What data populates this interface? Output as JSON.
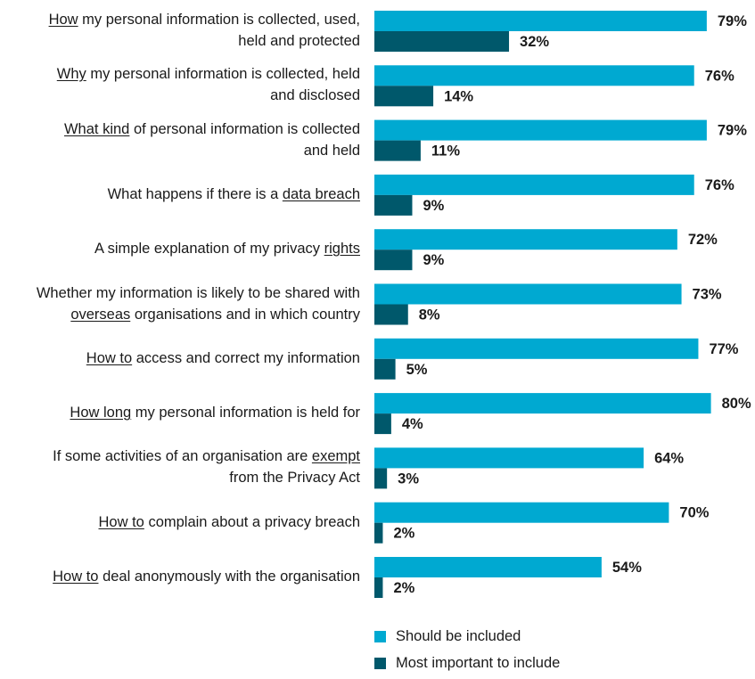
{
  "chart_data": {
    "type": "bar",
    "orientation": "horizontal",
    "categories": [
      {
        "segments": [
          {
            "text": "How",
            "underline": true
          },
          {
            "text": " my personal information is collected, used,",
            "underline": false
          }
        ],
        "line2": [
          {
            "text": "held and protected",
            "underline": false
          }
        ]
      },
      {
        "segments": [
          {
            "text": "Why",
            "underline": true
          },
          {
            "text": " my personal information is collected, held",
            "underline": false
          }
        ],
        "line2": [
          {
            "text": "and disclosed",
            "underline": false
          }
        ]
      },
      {
        "segments": [
          {
            "text": "What kind",
            "underline": true
          },
          {
            "text": " of personal information is collected",
            "underline": false
          }
        ],
        "line2": [
          {
            "text": "and held",
            "underline": false
          }
        ]
      },
      {
        "segments": [
          {
            "text": "What happens if there is a ",
            "underline": false
          },
          {
            "text": "data breach",
            "underline": true
          }
        ],
        "line2": []
      },
      {
        "segments": [
          {
            "text": "A simple explanation of my privacy ",
            "underline": false
          },
          {
            "text": "rights",
            "underline": true
          }
        ],
        "line2": []
      },
      {
        "segments": [
          {
            "text": "Whether my information is likely to be shared with",
            "underline": false
          }
        ],
        "line2": [
          {
            "text": "overseas",
            "underline": true
          },
          {
            "text": " organisations and in which country",
            "underline": false
          }
        ]
      },
      {
        "segments": [
          {
            "text": "How to",
            "underline": true
          },
          {
            "text": " access and correct my information",
            "underline": false
          }
        ],
        "line2": []
      },
      {
        "segments": [
          {
            "text": "How long",
            "underline": true
          },
          {
            "text": " my personal information is held for",
            "underline": false
          }
        ],
        "line2": []
      },
      {
        "segments": [
          {
            "text": "If some activities of an organisation are ",
            "underline": false
          },
          {
            "text": "exempt",
            "underline": true
          }
        ],
        "line2": [
          {
            "text": "from the Privacy Act",
            "underline": false
          }
        ]
      },
      {
        "segments": [
          {
            "text": "How to",
            "underline": true
          },
          {
            "text": " complain about a privacy breach",
            "underline": false
          }
        ],
        "line2": []
      },
      {
        "segments": [
          {
            "text": "How to",
            "underline": true
          },
          {
            "text": " deal anonymously with the organisation",
            "underline": false
          }
        ],
        "line2": []
      }
    ],
    "series": [
      {
        "name": "Should be included",
        "color": "#00a9d1",
        "values": [
          79,
          76,
          79,
          76,
          72,
          73,
          77,
          80,
          64,
          70,
          54
        ]
      },
      {
        "name": "Most important to include",
        "color": "#00586b",
        "values": [
          32,
          14,
          11,
          9,
          9,
          8,
          5,
          4,
          3,
          2,
          2
        ]
      }
    ],
    "value_suffix": "%",
    "xlim": [
      0,
      80
    ],
    "grid": false,
    "legend_position": "bottom"
  },
  "legend": {
    "items": [
      {
        "label": "Should be included",
        "color": "#00a9d1"
      },
      {
        "label": "Most important to include",
        "color": "#00586b"
      }
    ]
  }
}
